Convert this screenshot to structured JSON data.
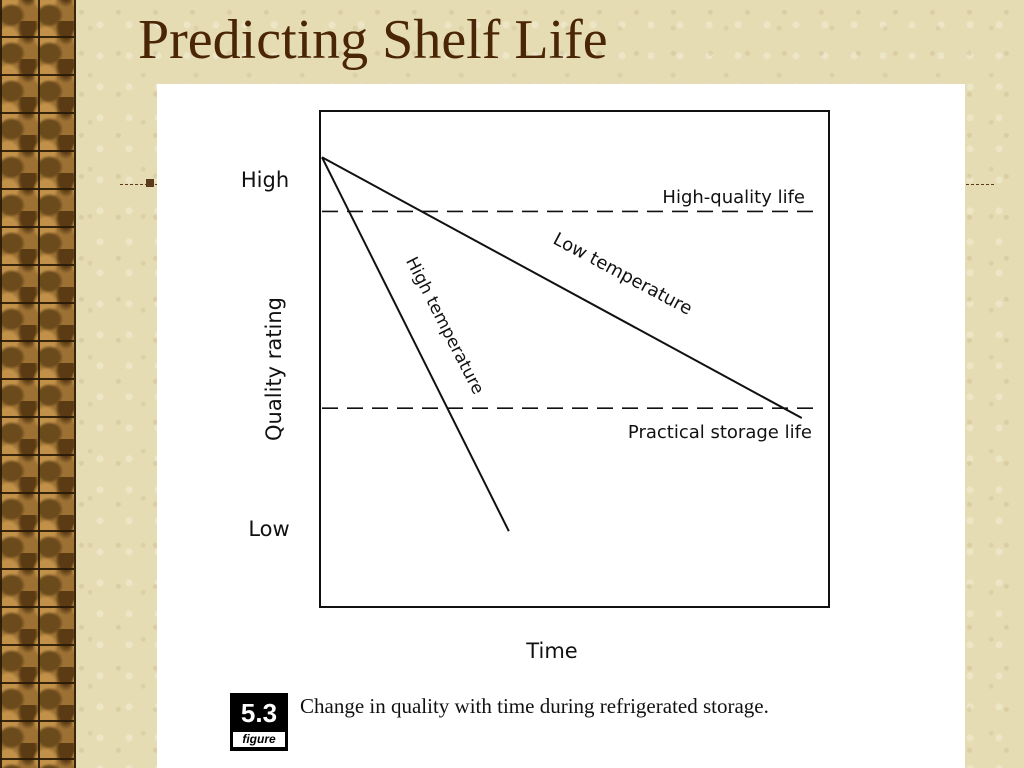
{
  "slide": {
    "title": "Predicting Shelf Life"
  },
  "figure": {
    "number": "5.3",
    "label": "figure",
    "caption": "Change in quality with time during refrigerated storage."
  },
  "chart_data": {
    "type": "line",
    "xlabel": "Time",
    "ylabel": "Quality rating",
    "y_tick_labels": [
      "High",
      "Low"
    ],
    "series": [
      {
        "name": "High temperature",
        "start": {
          "time": 0,
          "quality": 0.91
        },
        "end": {
          "time": 0.37,
          "quality": 0.15
        }
      },
      {
        "name": "Low temperature",
        "start": {
          "time": 0,
          "quality": 0.91
        },
        "end": {
          "time": 0.95,
          "quality": 0.38
        }
      }
    ],
    "thresholds": [
      {
        "name": "High-quality life",
        "quality": 0.8
      },
      {
        "name": "Practical storage life",
        "quality": 0.4
      }
    ],
    "xlim": [
      0,
      1
    ],
    "ylim": [
      0,
      1
    ],
    "grid": false,
    "legend": "none"
  }
}
